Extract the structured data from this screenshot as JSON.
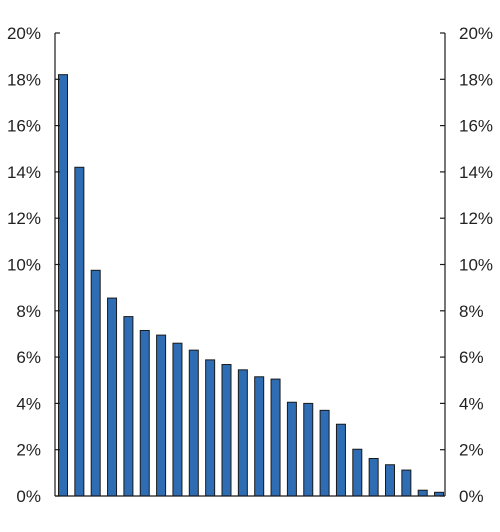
{
  "chart_data": {
    "type": "bar",
    "title": "",
    "xlabel": "",
    "ylabel": "",
    "ylim": [
      0,
      20
    ],
    "y_ticks": [
      "0%",
      "2%",
      "4%",
      "6%",
      "8%",
      "10%",
      "12%",
      "14%",
      "16%",
      "18%",
      "20%"
    ],
    "y_tick_values": [
      0,
      2,
      4,
      6,
      8,
      10,
      12,
      14,
      16,
      18,
      20
    ],
    "grid": false,
    "legend": "none",
    "bar_color": "#2e6db4",
    "values": [
      18.2,
      14.2,
      9.75,
      8.55,
      7.75,
      7.15,
      6.95,
      6.6,
      6.3,
      5.88,
      5.68,
      5.45,
      5.15,
      5.05,
      4.05,
      4.0,
      3.7,
      3.1,
      2.02,
      1.62,
      1.35,
      1.12,
      0.25,
      0.16
    ]
  }
}
